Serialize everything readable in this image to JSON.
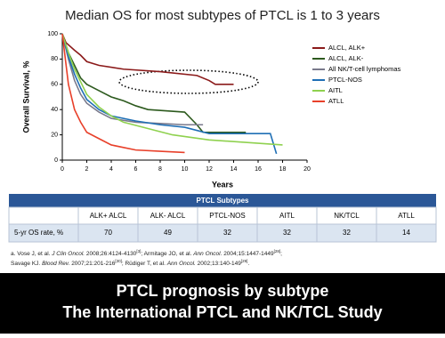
{
  "chart_data": {
    "type": "line",
    "title": "Median OS for most subtypes of PTCL is 1 to 3 years",
    "xlabel": "Years",
    "ylabel": "Overall Survival, %",
    "xlim": [
      0,
      20
    ],
    "xticks": [
      0,
      2,
      4,
      6,
      8,
      10,
      12,
      14,
      16,
      18,
      20
    ],
    "ylim": [
      0,
      100
    ],
    "yticks": [
      0,
      20,
      40,
      60,
      80,
      100
    ],
    "series": [
      {
        "name": "ALCL, ALK+",
        "color": "#8b1a1a",
        "x": [
          0,
          0.3,
          1,
          1.5,
          2,
          3,
          5,
          8,
          11,
          12,
          12.5,
          14
        ],
        "values": [
          100,
          93,
          87,
          83,
          78,
          75,
          72,
          70,
          67,
          63,
          60,
          60
        ]
      },
      {
        "name": "ALCL, ALK-",
        "color": "#2d5a1e",
        "x": [
          0,
          0.5,
          1,
          1.5,
          2,
          3,
          4,
          5,
          6,
          7,
          10,
          11,
          11.5,
          13,
          15
        ],
        "values": [
          100,
          85,
          75,
          65,
          60,
          55,
          50,
          47,
          43,
          40,
          38,
          28,
          22,
          22,
          22
        ]
      },
      {
        "name": "All NK/T-cell lymphomas",
        "color": "#7a7a8c",
        "x": [
          0,
          0.5,
          1,
          1.5,
          2,
          3,
          4,
          6,
          8,
          10,
          11.5
        ],
        "values": [
          100,
          80,
          63,
          52,
          45,
          38,
          33,
          30,
          29,
          28,
          28
        ]
      },
      {
        "name": "PTCL-NOS",
        "color": "#1f6fb5",
        "x": [
          0,
          0.5,
          1,
          1.5,
          2,
          3,
          4,
          6,
          8,
          10,
          12,
          17,
          17.5
        ],
        "values": [
          100,
          82,
          68,
          57,
          48,
          40,
          35,
          31,
          28,
          26,
          21,
          21,
          5
        ]
      },
      {
        "name": "AITL",
        "color": "#8fd14f",
        "x": [
          0,
          0.5,
          1,
          1.5,
          2,
          3,
          4,
          5,
          7,
          9,
          12,
          18
        ],
        "values": [
          100,
          85,
          72,
          62,
          52,
          42,
          35,
          30,
          25,
          20,
          16,
          12
        ]
      },
      {
        "name": "ATLL",
        "color": "#e8402a",
        "x": [
          0,
          0.5,
          1,
          1.5,
          2,
          3,
          4,
          5,
          6,
          8,
          10
        ],
        "values": [
          100,
          60,
          40,
          30,
          22,
          17,
          12,
          10,
          8,
          7,
          6
        ]
      }
    ]
  },
  "table": {
    "title": "PTCL Subtypes",
    "columns": [
      "ALK+ ALCL",
      "ALK- ALCL",
      "PTCL-NOS",
      "AITL",
      "NK/TCL",
      "ATLL"
    ],
    "row_label": "5-yr OS rate, %",
    "values": [
      70,
      49,
      32,
      32,
      32,
      14
    ]
  },
  "references": [
    "a. Vose J, et al. ",
    "J Clin Oncol.",
    " 2008;26:4124-4130",
    "[3]",
    "; Armitage JO, et al. ",
    "Ann Oncol.",
    " 2004;15:1447-1449",
    "[28]",
    ";",
    "Savage KJ. ",
    "Blood Rev.",
    " 2007;21:201-216",
    "[30]",
    "; Rüdiger T, et al. ",
    "Ann Oncol.",
    " 2002;13:140-149",
    "[29]",
    "."
  ],
  "footer": [
    "PTCL prognosis by subtype",
    "The International PTCL and NK/TCL Study"
  ]
}
